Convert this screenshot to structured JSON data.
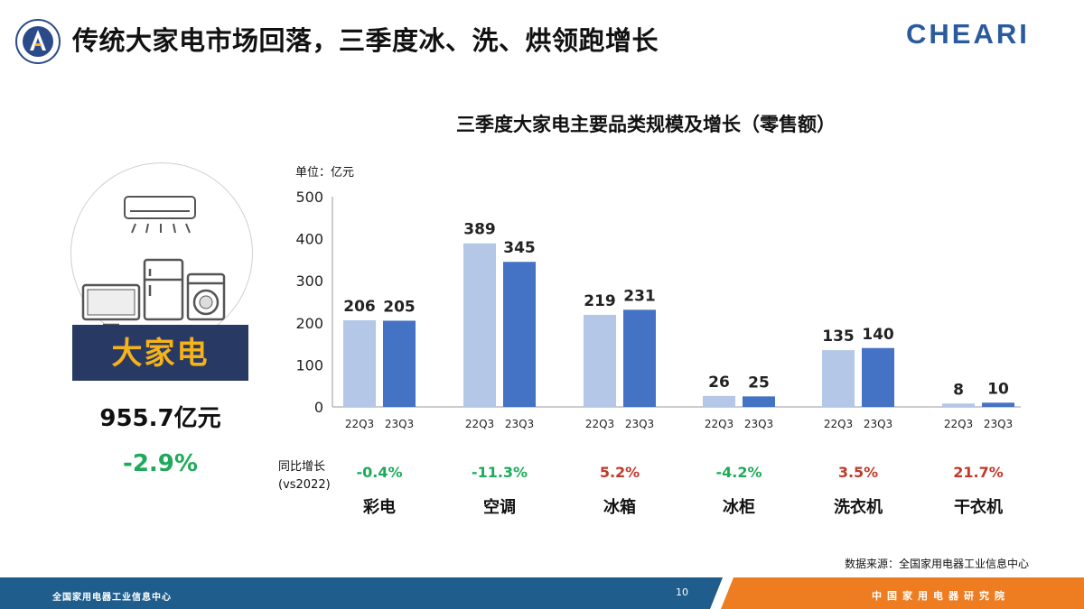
{
  "header": {
    "title": "传统大家电市场回落，三季度冰、洗、烘领跑增长",
    "brand": "CHEARI",
    "brand_color": "#2a5b9c"
  },
  "summary": {
    "label": "大家电",
    "total": "955.7亿元",
    "growth": "-2.9%",
    "icons": [
      "air-conditioner-icon",
      "tv-icon",
      "refrigerator-icon",
      "washing-machine-icon"
    ]
  },
  "chart_data": {
    "type": "bar",
    "title": "三季度大家电主要品类规模及增长（零售额）",
    "unit_label": "单位：亿元",
    "ylim": [
      0,
      500
    ],
    "yticks": [
      0,
      100,
      200,
      300,
      400,
      500
    ],
    "grid": false,
    "series_labels": [
      "22Q3",
      "23Q3"
    ],
    "series_colors": [
      "#b4c7e7",
      "#4472c4"
    ],
    "categories": [
      "彩电",
      "空调",
      "冰箱",
      "冰柜",
      "洗衣机",
      "干衣机"
    ],
    "series": [
      {
        "values": [
          206,
          389,
          219,
          26,
          135,
          8
        ]
      },
      {
        "values": [
          205,
          345,
          231,
          25,
          140,
          10
        ]
      }
    ],
    "yoy_caption": [
      "同比增长",
      "(vs2022)"
    ],
    "yoy": [
      "-0.4%",
      "-11.3%",
      "5.2%",
      "-4.2%",
      "3.5%",
      "21.7%"
    ],
    "yoy_colors": {
      "negative": "#1eaa5a",
      "positive": "#c0392b"
    }
  },
  "source_note": "数据来源：全国家用电器工业信息中心",
  "footer": {
    "left": "全国家用电器工业信息中心",
    "page_number": "10",
    "right": "中国家用电器研究院",
    "blue": "#1f5d8c",
    "orange": "#ee7d22"
  }
}
